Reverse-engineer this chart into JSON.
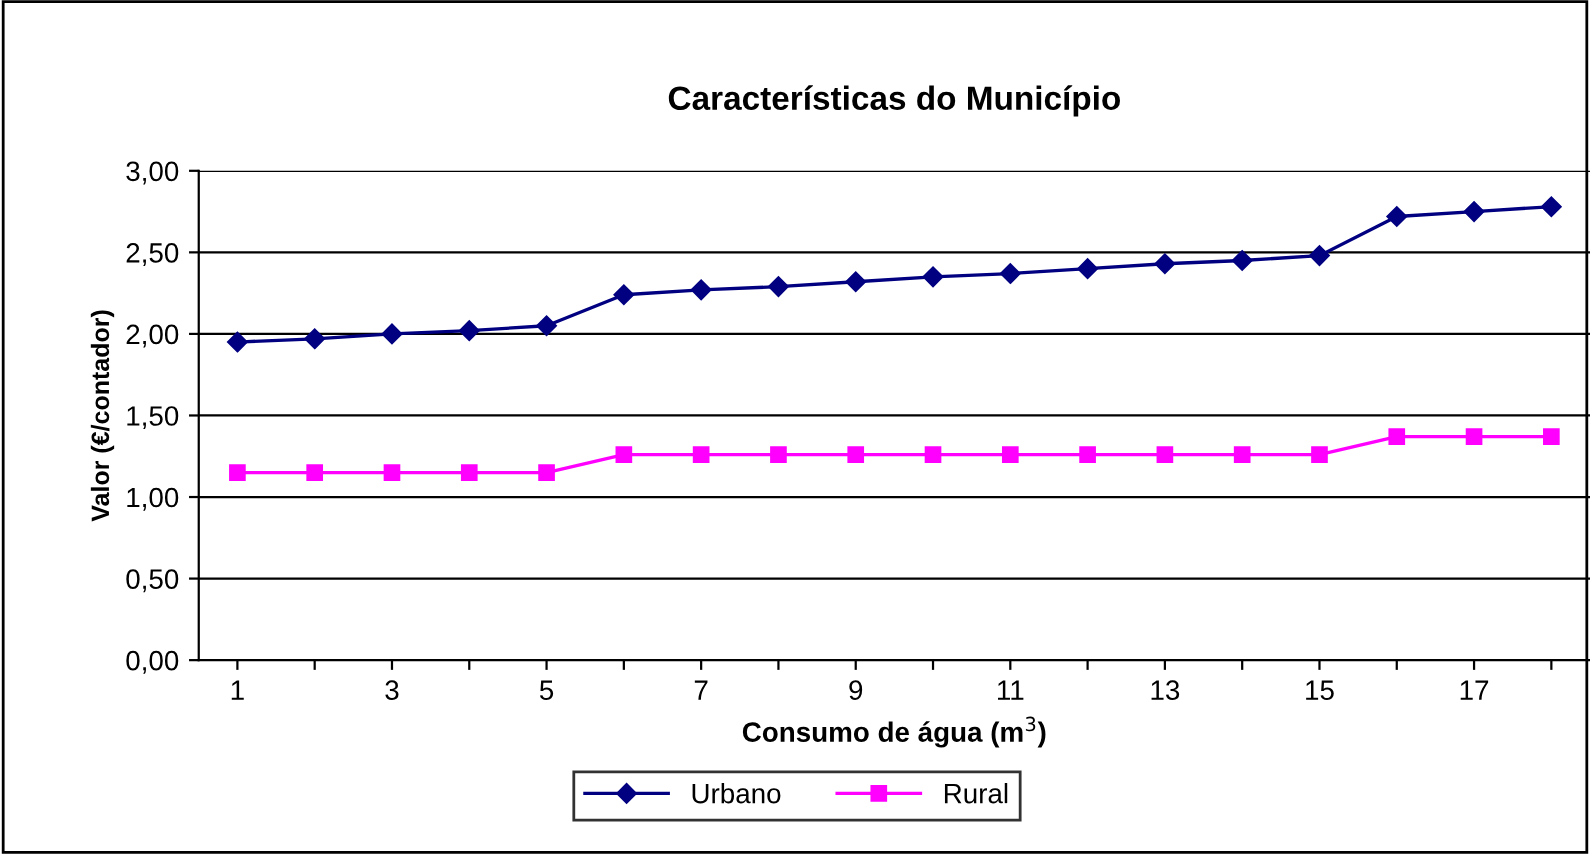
{
  "chart_data": {
    "type": "line",
    "title": "Características do Município",
    "xlabel": "Consumo de água (m$^{3}$)",
    "ylabel": "Valor (€/contador)",
    "categories": [
      "1",
      null,
      "3",
      null,
      "5",
      null,
      "7",
      null,
      "9",
      null,
      "11",
      null,
      "13",
      null,
      "15",
      null,
      "17",
      null
    ],
    "series": [
      {
        "name": "Urbano",
        "color": "#000080",
        "marker": "diamond",
        "values": [
          1.95,
          1.97,
          2.0,
          2.02,
          2.05,
          2.24,
          2.27,
          2.29,
          2.32,
          2.35,
          2.37,
          2.4,
          2.43,
          2.45,
          2.48,
          2.72,
          2.75,
          2.78
        ]
      },
      {
        "name": "Rural",
        "color": "#ff00ff",
        "marker": "square",
        "values": [
          1.15,
          1.15,
          1.15,
          1.15,
          1.15,
          1.26,
          1.26,
          1.26,
          1.26,
          1.26,
          1.26,
          1.26,
          1.26,
          1.26,
          1.26,
          1.37,
          1.37,
          1.37
        ]
      }
    ],
    "ylim": [
      0,
      3
    ],
    "yticks": [
      {
        "value": 0,
        "label": "0,00"
      },
      {
        "value": 0.5,
        "label": "0,50"
      },
      {
        "value": 1,
        "label": "1,00"
      },
      {
        "value": 1.5,
        "label": "1,50"
      },
      {
        "value": 2,
        "label": "2,00"
      },
      {
        "value": 2.5,
        "label": "2,50"
      },
      {
        "value": 3,
        "label": "3,00"
      }
    ],
    "grid": "y",
    "legend": "bottom"
  }
}
